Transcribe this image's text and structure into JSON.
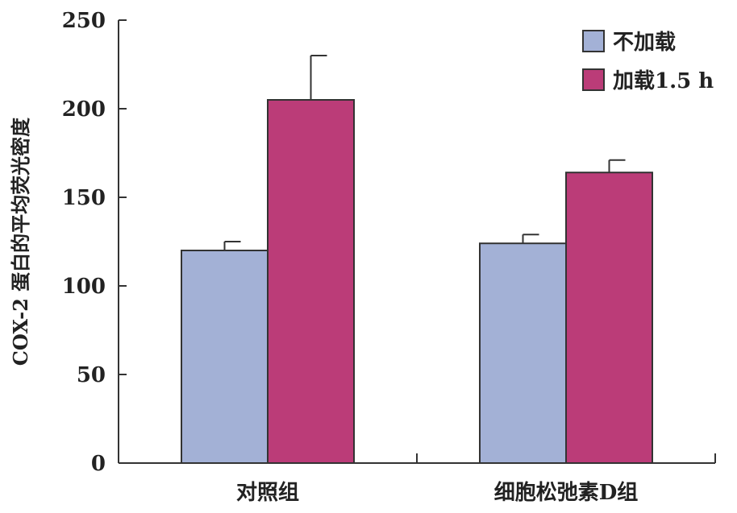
{
  "chart_data": {
    "type": "bar",
    "title": "",
    "xlabel": "",
    "ylabel": "COX-2 蛋白的平均荧光密度",
    "ylim": [
      0,
      250
    ],
    "yticks": [
      0,
      50,
      100,
      150,
      200,
      250
    ],
    "categories": [
      "对照组",
      "细胞松弛素D组"
    ],
    "series": [
      {
        "name": "不加载",
        "color": "#a3b1d6",
        "values": [
          120,
          124
        ],
        "errors": [
          5,
          5
        ]
      },
      {
        "name": "加载1.5 h",
        "color": "#bb3c78",
        "values": [
          205,
          164
        ],
        "errors": [
          25,
          7
        ]
      }
    ],
    "legend_position": "top-right",
    "grid": false
  }
}
